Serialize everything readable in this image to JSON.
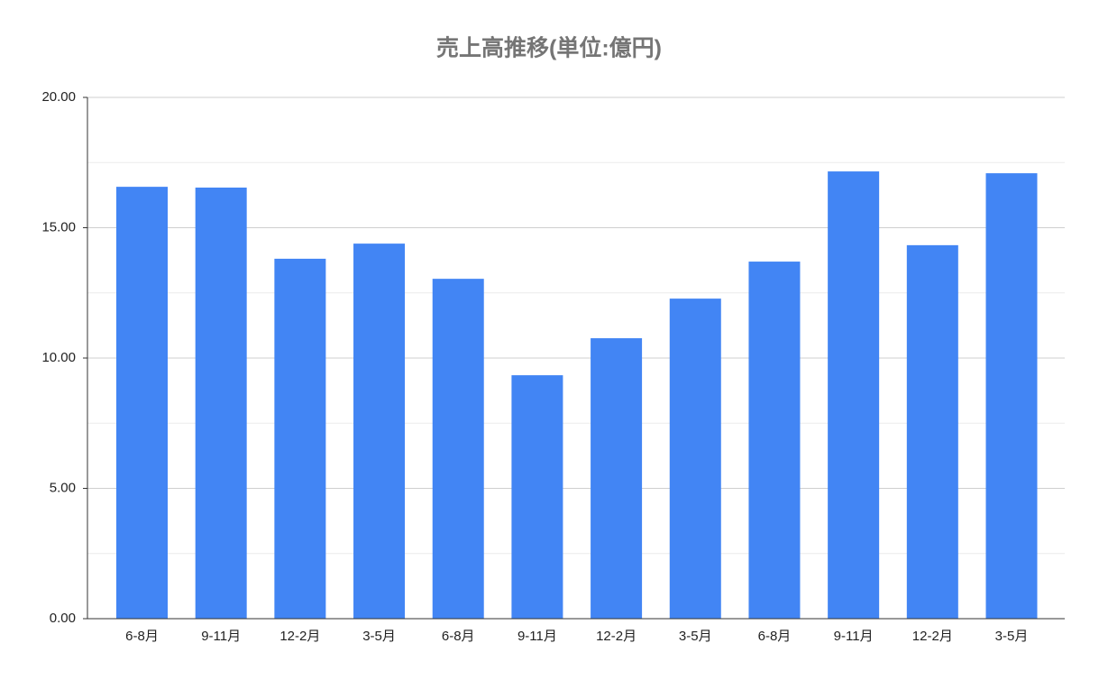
{
  "chart_data": {
    "type": "bar",
    "title": "売上高推移(単位:億円)",
    "categories": [
      "6-8月",
      "9-11月",
      "12-2月",
      "3-5月",
      "6-8月",
      "9-11月",
      "12-2月",
      "3-5月",
      "6-8月",
      "9-11月",
      "12-2月",
      "3-5月"
    ],
    "values": [
      16.57,
      16.54,
      13.81,
      14.39,
      13.04,
      9.34,
      10.76,
      12.28,
      13.7,
      17.16,
      14.33,
      17.09
    ],
    "color": "#4285f4",
    "ylim": [
      0,
      20
    ],
    "yticks": [
      {
        "value": 0,
        "label": "0.00"
      },
      {
        "value": 5,
        "label": "5.00"
      },
      {
        "value": 10,
        "label": "10.00"
      },
      {
        "value": 15,
        "label": "15.00"
      },
      {
        "value": 20,
        "label": "20.00"
      }
    ],
    "yminorticks": [
      2.5,
      7.5,
      12.5,
      17.5
    ],
    "grid": true
  }
}
